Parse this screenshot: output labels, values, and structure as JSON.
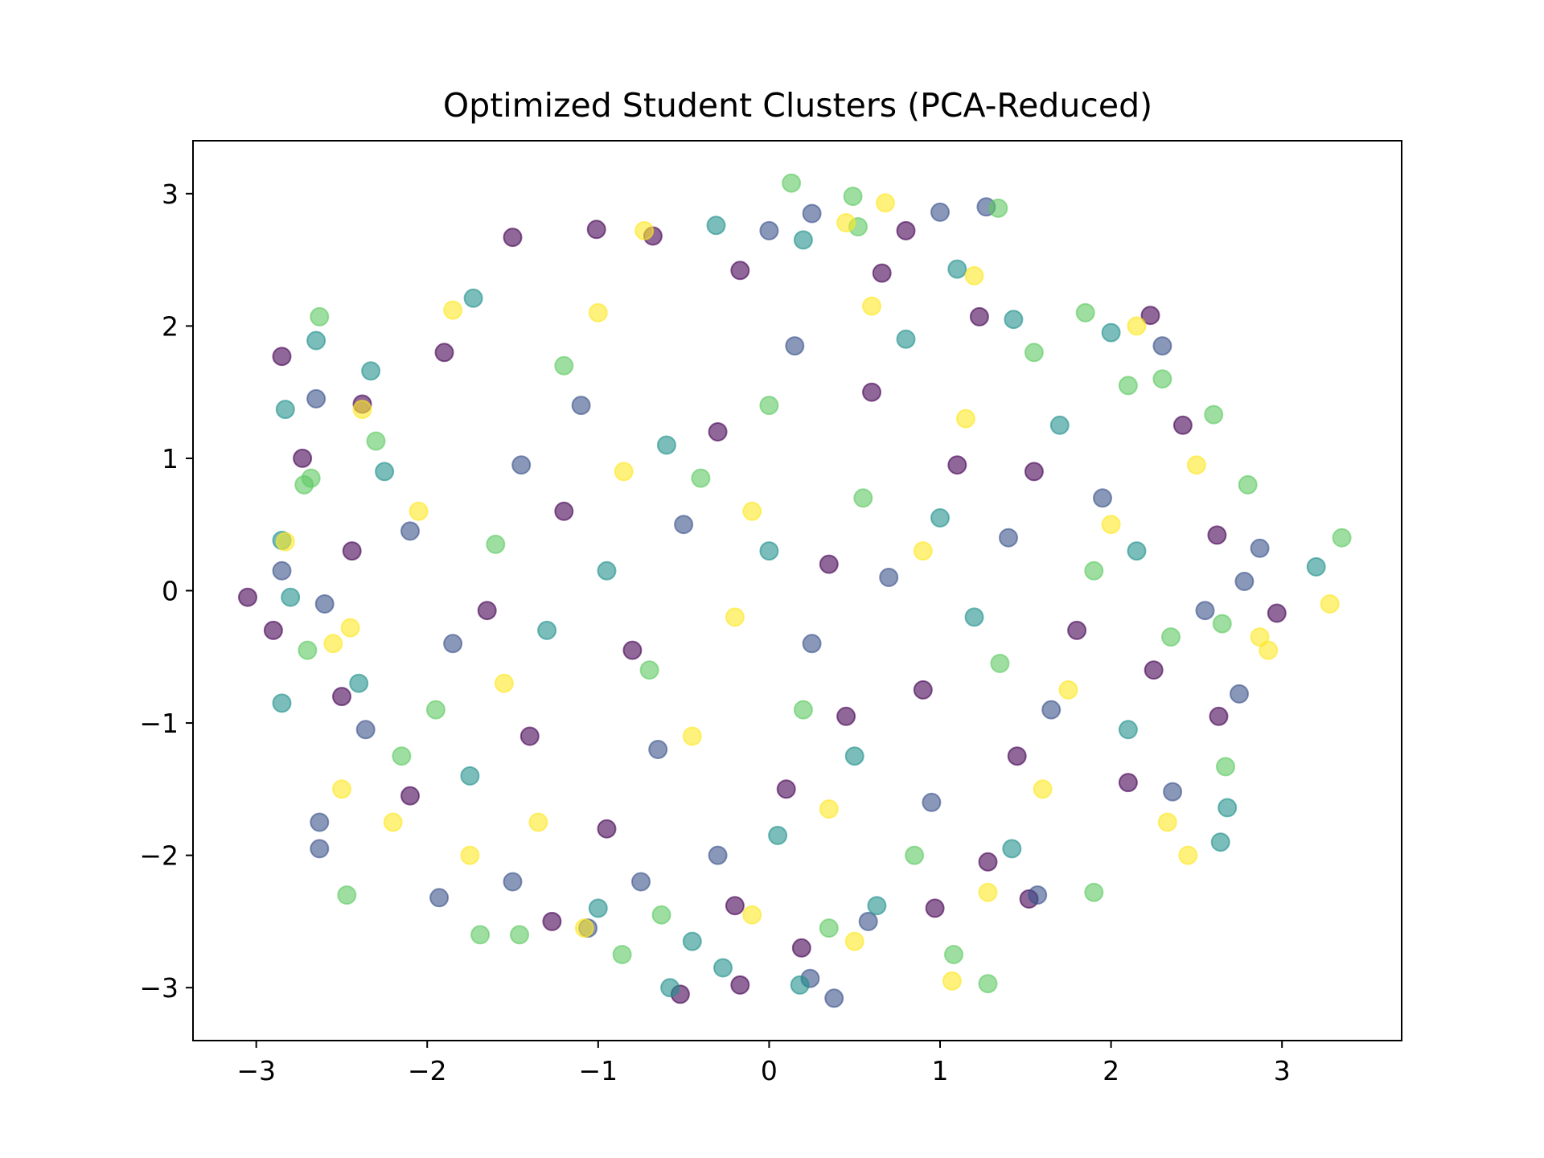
{
  "chart_data": {
    "type": "scatter",
    "title": "Optimized Student Clusters (PCA-Reduced)",
    "xlabel": "",
    "ylabel": "",
    "xlim": [
      -3.37,
      3.7
    ],
    "ylim": [
      -3.4,
      3.4
    ],
    "x_ticks": [
      -3,
      -2,
      -1,
      0,
      1,
      2,
      3
    ],
    "y_ticks": [
      -3,
      -2,
      -1,
      0,
      1,
      2,
      3
    ],
    "x_tick_labels": [
      "−3",
      "−2",
      "−1",
      "0",
      "1",
      "2",
      "3"
    ],
    "y_tick_labels": [
      "−3",
      "−2",
      "−1",
      "0",
      "1",
      "2",
      "3"
    ],
    "grid": false,
    "legend": "none",
    "colormap": "viridis",
    "cluster_colors": [
      "#440154",
      "#3b528b",
      "#21918c",
      "#5ec962",
      "#fde725"
    ],
    "marker_opacity": 0.6,
    "series": [
      {
        "cluster": 0,
        "color": "#440154",
        "points": [
          [
            -3.05,
            -0.05
          ],
          [
            -2.9,
            -0.3
          ],
          [
            -2.85,
            1.77
          ],
          [
            -2.73,
            1.0
          ],
          [
            -2.38,
            1.41
          ],
          [
            -2.1,
            -1.55
          ],
          [
            -1.5,
            2.67
          ],
          [
            -1.01,
            2.73
          ],
          [
            -0.68,
            2.68
          ],
          [
            -0.17,
            2.42
          ],
          [
            0.66,
            2.4
          ],
          [
            0.8,
            2.72
          ],
          [
            1.23,
            2.07
          ],
          [
            2.23,
            2.08
          ],
          [
            2.42,
            1.25
          ],
          [
            2.62,
            0.42
          ],
          [
            2.97,
            -0.17
          ],
          [
            2.63,
            -0.95
          ],
          [
            2.1,
            -1.45
          ],
          [
            1.52,
            -2.33
          ],
          [
            1.28,
            -2.05
          ],
          [
            0.97,
            -2.4
          ],
          [
            0.19,
            -2.7
          ],
          [
            -0.2,
            -2.38
          ],
          [
            -0.52,
            -3.05
          ],
          [
            -0.17,
            -2.98
          ],
          [
            -1.27,
            -2.5
          ],
          [
            -2.5,
            -0.8
          ],
          [
            -2.44,
            0.3
          ],
          [
            -1.2,
            0.6
          ],
          [
            -0.8,
            -0.45
          ],
          [
            0.35,
            0.2
          ],
          [
            0.9,
            -0.75
          ],
          [
            1.55,
            0.9
          ],
          [
            -1.4,
            -1.1
          ],
          [
            0.1,
            -1.5
          ],
          [
            1.8,
            -0.3
          ],
          [
            -0.3,
            1.2
          ],
          [
            0.6,
            1.5
          ],
          [
            -1.9,
            1.8
          ],
          [
            1.1,
            0.95
          ],
          [
            -0.95,
            -1.8
          ],
          [
            2.25,
            -0.6
          ],
          [
            -1.65,
            -0.15
          ],
          [
            0.45,
            -0.95
          ],
          [
            1.45,
            -1.25
          ]
        ]
      },
      {
        "cluster": 1,
        "color": "#3b528b",
        "points": [
          [
            -2.85,
            0.15
          ],
          [
            -2.6,
            -0.1
          ],
          [
            -2.65,
            1.45
          ],
          [
            -2.63,
            -1.75
          ],
          [
            -2.63,
            -1.95
          ],
          [
            -2.36,
            -1.05
          ],
          [
            -1.93,
            -2.32
          ],
          [
            0.0,
            2.72
          ],
          [
            0.25,
            2.85
          ],
          [
            1.0,
            2.86
          ],
          [
            1.27,
            2.9
          ],
          [
            2.3,
            1.85
          ],
          [
            2.87,
            0.32
          ],
          [
            2.78,
            0.07
          ],
          [
            2.75,
            -0.78
          ],
          [
            2.55,
            -0.15
          ],
          [
            2.36,
            -1.52
          ],
          [
            1.57,
            -2.3
          ],
          [
            0.38,
            -3.08
          ],
          [
            0.24,
            -2.93
          ],
          [
            0.58,
            -2.5
          ],
          [
            -0.75,
            -2.2
          ],
          [
            -1.06,
            -2.55
          ],
          [
            -1.5,
            -2.2
          ],
          [
            -1.85,
            -0.4
          ],
          [
            -0.5,
            0.5
          ],
          [
            0.7,
            0.1
          ],
          [
            1.4,
            0.4
          ],
          [
            -1.1,
            1.4
          ],
          [
            0.25,
            -0.4
          ],
          [
            1.95,
            0.7
          ],
          [
            -2.1,
            0.45
          ],
          [
            0.95,
            -1.6
          ],
          [
            -0.65,
            -1.2
          ],
          [
            1.65,
            -0.9
          ],
          [
            -1.45,
            0.95
          ],
          [
            0.15,
            1.85
          ],
          [
            -0.3,
            -2.0
          ]
        ]
      },
      {
        "cluster": 2,
        "color": "#21918c",
        "points": [
          [
            -2.85,
            0.38
          ],
          [
            -2.8,
            -0.05
          ],
          [
            -2.85,
            -0.85
          ],
          [
            -2.83,
            1.37
          ],
          [
            -2.65,
            1.89
          ],
          [
            -2.33,
            1.66
          ],
          [
            -1.73,
            2.21
          ],
          [
            -0.31,
            2.76
          ],
          [
            0.2,
            2.65
          ],
          [
            1.1,
            2.43
          ],
          [
            1.43,
            2.05
          ],
          [
            2.0,
            1.95
          ],
          [
            3.2,
            0.18
          ],
          [
            2.15,
            0.3
          ],
          [
            2.68,
            -1.64
          ],
          [
            2.64,
            -1.9
          ],
          [
            1.42,
            -1.95
          ],
          [
            -0.27,
            -2.85
          ],
          [
            -0.58,
            -3.0
          ],
          [
            0.18,
            -2.98
          ],
          [
            0.63,
            -2.38
          ],
          [
            -0.45,
            -2.65
          ],
          [
            -1.0,
            -2.4
          ],
          [
            -2.4,
            -0.7
          ],
          [
            -1.3,
            -0.3
          ],
          [
            0.0,
            0.3
          ],
          [
            1.2,
            -0.2
          ],
          [
            -0.6,
            1.1
          ],
          [
            0.8,
            1.9
          ],
          [
            -1.75,
            -1.4
          ],
          [
            1.7,
            1.25
          ],
          [
            -0.95,
            0.15
          ],
          [
            0.5,
            -1.25
          ],
          [
            2.1,
            -1.05
          ],
          [
            -2.25,
            0.9
          ],
          [
            0.05,
            -1.85
          ],
          [
            1.0,
            0.55
          ]
        ]
      },
      {
        "cluster": 3,
        "color": "#5ec962",
        "points": [
          [
            -2.68,
            0.85
          ],
          [
            -2.72,
            0.8
          ],
          [
            -2.7,
            -0.45
          ],
          [
            -2.63,
            2.07
          ],
          [
            -2.47,
            -2.3
          ],
          [
            -2.3,
            1.13
          ],
          [
            -1.69,
            -2.6
          ],
          [
            -1.46,
            -2.6
          ],
          [
            -0.86,
            -2.75
          ],
          [
            -0.63,
            -2.45
          ],
          [
            0.13,
            3.08
          ],
          [
            0.49,
            2.98
          ],
          [
            0.52,
            2.75
          ],
          [
            1.34,
            2.89
          ],
          [
            1.85,
            2.1
          ],
          [
            2.1,
            1.55
          ],
          [
            2.3,
            1.6
          ],
          [
            2.6,
            1.33
          ],
          [
            2.8,
            0.8
          ],
          [
            3.35,
            0.4
          ],
          [
            2.65,
            -0.25
          ],
          [
            2.67,
            -1.33
          ],
          [
            1.28,
            -2.97
          ],
          [
            1.08,
            -2.75
          ],
          [
            0.35,
            -2.55
          ],
          [
            1.9,
            -2.28
          ],
          [
            -1.95,
            -0.9
          ],
          [
            -0.7,
            -0.6
          ],
          [
            0.55,
            0.7
          ],
          [
            1.35,
            -0.55
          ],
          [
            -1.2,
            1.7
          ],
          [
            0.2,
            -0.9
          ],
          [
            1.9,
            0.15
          ],
          [
            -0.4,
            0.85
          ],
          [
            -1.6,
            0.35
          ],
          [
            0.85,
            -2.0
          ],
          [
            1.55,
            1.8
          ],
          [
            -2.15,
            -1.25
          ],
          [
            0.0,
            1.4
          ],
          [
            2.35,
            -0.35
          ]
        ]
      },
      {
        "cluster": 4,
        "color": "#fde725",
        "points": [
          [
            -2.83,
            0.37
          ],
          [
            -2.55,
            -0.4
          ],
          [
            -2.5,
            -1.5
          ],
          [
            -2.45,
            -0.28
          ],
          [
            -2.38,
            1.37
          ],
          [
            -2.2,
            -1.75
          ],
          [
            -1.85,
            2.12
          ],
          [
            -0.73,
            2.72
          ],
          [
            0.45,
            2.78
          ],
          [
            0.68,
            2.93
          ],
          [
            1.2,
            2.38
          ],
          [
            2.15,
            2.0
          ],
          [
            2.5,
            0.95
          ],
          [
            3.28,
            -0.1
          ],
          [
            2.92,
            -0.45
          ],
          [
            2.87,
            -0.35
          ],
          [
            2.45,
            -2.0
          ],
          [
            2.33,
            -1.75
          ],
          [
            1.07,
            -2.95
          ],
          [
            1.28,
            -2.28
          ],
          [
            0.5,
            -2.65
          ],
          [
            -1.08,
            -2.55
          ],
          [
            -0.1,
            -2.45
          ],
          [
            -1.75,
            -2.0
          ],
          [
            -1.55,
            -0.7
          ],
          [
            -0.2,
            -0.2
          ],
          [
            0.9,
            0.3
          ],
          [
            -0.85,
            0.9
          ],
          [
            0.35,
            -1.65
          ],
          [
            1.6,
            -1.5
          ],
          [
            -2.05,
            0.6
          ],
          [
            1.15,
            1.3
          ],
          [
            -0.45,
            -1.1
          ],
          [
            0.6,
            2.15
          ],
          [
            2.0,
            0.5
          ],
          [
            -1.35,
            -1.75
          ],
          [
            1.75,
            -0.75
          ],
          [
            -0.1,
            0.6
          ],
          [
            -1.0,
            2.1
          ]
        ]
      }
    ]
  }
}
